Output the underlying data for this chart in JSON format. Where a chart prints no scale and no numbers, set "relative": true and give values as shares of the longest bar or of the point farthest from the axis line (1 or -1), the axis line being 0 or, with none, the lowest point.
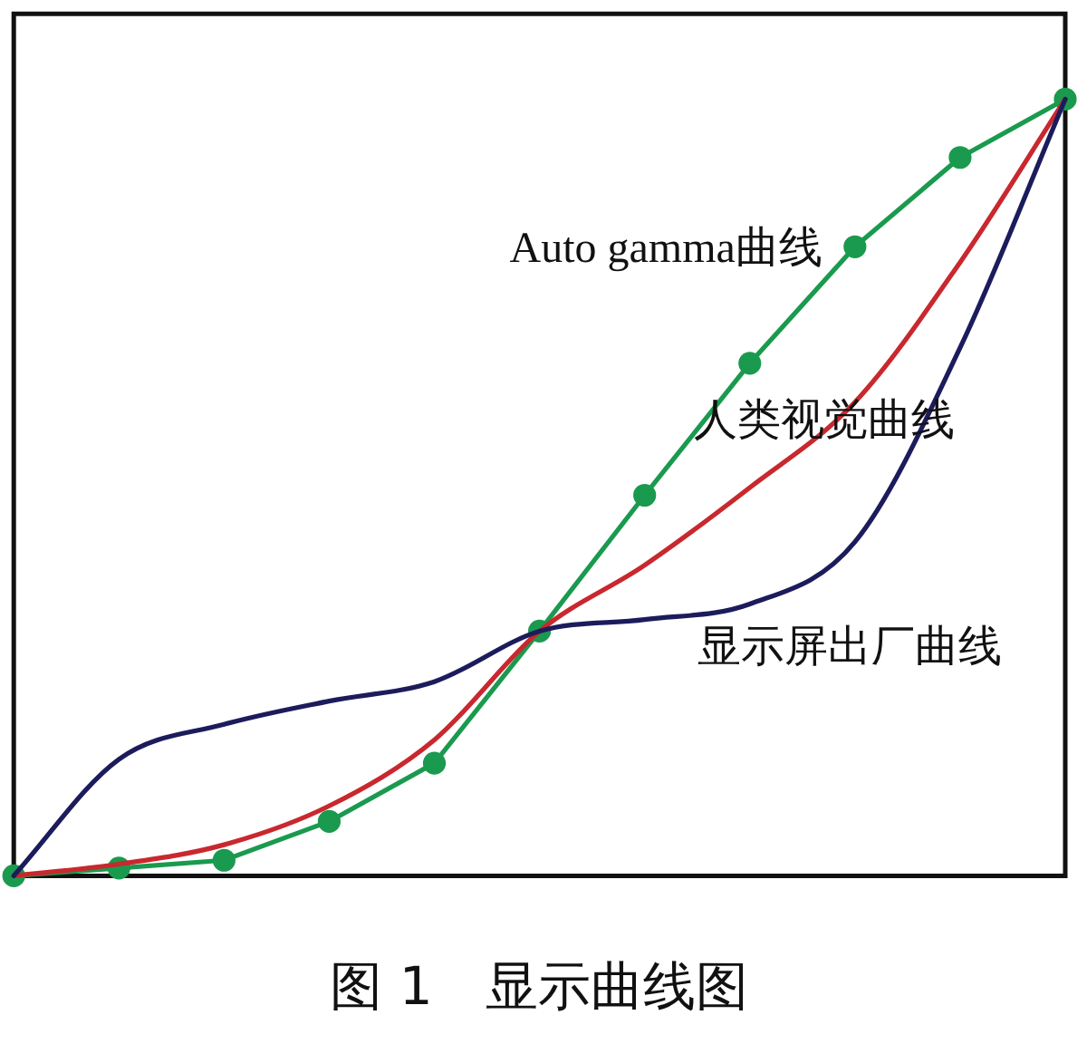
{
  "chart_data": {
    "type": "line",
    "title": "图 1　显示曲线图",
    "relative": true,
    "legend": false,
    "categories": [
      null,
      null,
      null,
      null,
      null,
      null,
      null,
      null,
      null,
      null,
      null
    ],
    "series": [
      {
        "name": "Auto gamma曲线",
        "color": "#1a9a4e",
        "marker": "circle",
        "values": [
          0,
          0.01,
          0.02,
          0.07,
          0.145,
          0.315,
          0.49,
          0.66,
          0.81,
          0.925,
          1
        ]
      },
      {
        "name": "人类视觉曲线",
        "color": "#c8282e",
        "marker": "none",
        "values": [
          0,
          0.015,
          0.04,
          0.09,
          0.175,
          0.315,
          0.4,
          0.5,
          0.61,
          0.79,
          1
        ]
      },
      {
        "name": "显示屏出厂曲线",
        "color": "#1c1c5c",
        "marker": "none",
        "values": [
          0,
          0.15,
          0.195,
          0.225,
          0.25,
          0.315,
          0.33,
          0.35,
          0.43,
          0.68,
          1
        ]
      }
    ]
  }
}
